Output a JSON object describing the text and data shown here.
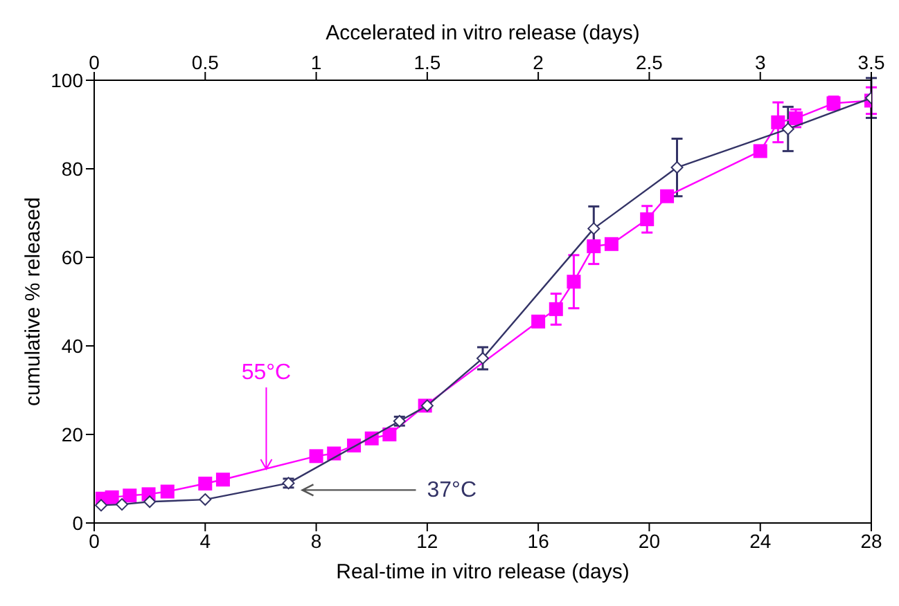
{
  "chart_data": {
    "type": "line",
    "xlabel": "Real-time in vitro release (days)",
    "x2label": "Accelerated in vitro release (days)",
    "ylabel": "cumulative % released",
    "xlim": [
      0,
      28
    ],
    "xticks": [
      0,
      4,
      8,
      12,
      16,
      20,
      24,
      28
    ],
    "x2lim": [
      0,
      3.5
    ],
    "x2ticks": [
      0,
      0.5,
      1,
      1.5,
      2,
      2.5,
      3,
      3.5
    ],
    "ylim": [
      0,
      100
    ],
    "yticks": [
      0,
      20,
      40,
      60,
      80,
      100
    ],
    "grid": false,
    "series": [
      {
        "axis": "x2",
        "color": "#ff00ff",
        "marker": "square",
        "x": [
          0.037,
          0.08,
          0.16,
          0.245,
          0.33,
          0.5,
          0.58,
          1.0,
          1.08,
          1.17,
          1.25,
          1.33,
          1.49,
          2.0,
          2.08,
          2.16,
          2.25,
          2.33,
          2.49,
          2.58,
          3.0,
          3.08,
          3.16,
          3.33,
          3.5
        ],
        "values": [
          5.5,
          5.8,
          6.2,
          6.5,
          7.1,
          8.9,
          9.8,
          15.1,
          15.7,
          17.5,
          19.1,
          20.0,
          26.5,
          45.5,
          48.3,
          54.5,
          62.5,
          63,
          68.6,
          73.8,
          84,
          90.5,
          91.4,
          94.8,
          95.4
        ],
        "errors": [
          null,
          null,
          null,
          null,
          null,
          null,
          null,
          null,
          null,
          null,
          null,
          null,
          1,
          1,
          3.5,
          6,
          4,
          null,
          3,
          null,
          null,
          4.5,
          2,
          1.5,
          3
        ]
      },
      {
        "color": "#333366",
        "marker": "diamond",
        "x": [
          0.25,
          1,
          2,
          4,
          7,
          11,
          12,
          14,
          18,
          21,
          25,
          28
        ],
        "values": [
          4,
          4.2,
          4.8,
          5.3,
          9,
          23,
          26.5,
          37.2,
          66.5,
          80.3,
          89,
          96
        ],
        "errors": [
          null,
          null,
          null,
          null,
          1,
          1,
          null,
          2.5,
          5,
          6.5,
          5,
          4.5
        ]
      }
    ],
    "annotations": [
      {
        "text": "55°C",
        "x": 6.2,
        "y": 12.2
      },
      "37°C"
    ]
  }
}
